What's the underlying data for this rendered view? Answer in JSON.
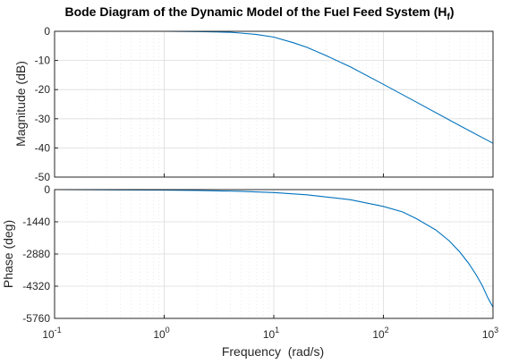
{
  "chart_data": [
    {
      "type": "line",
      "panel": "magnitude",
      "title": "Bode Diagram of the Dynamic Model of the Fuel Feed System (H",
      "title_subscript": "f",
      "title_suffix": ")",
      "ylabel": "Magnitude (dB)",
      "xlabel": "",
      "xscale": "log",
      "xlim": [
        0.1,
        1000
      ],
      "ylim": [
        -50,
        0
      ],
      "yticks": [
        "0",
        "-10",
        "-20",
        "-30",
        "-40",
        "-50"
      ],
      "grid": true,
      "color": "#0072BD",
      "series": [
        {
          "x": [
            0.1,
            0.5,
            1,
            2,
            3,
            4,
            5,
            7,
            10,
            15,
            20,
            30,
            50,
            100,
            200,
            500,
            1000
          ],
          "values": [
            0,
            0,
            0,
            -0.1,
            -0.2,
            -0.35,
            -0.6,
            -1.1,
            -2,
            -3.9,
            -5.5,
            -8.3,
            -12.2,
            -18.2,
            -24.3,
            -32.4,
            -38.4
          ]
        }
      ]
    },
    {
      "type": "line",
      "panel": "phase",
      "title": "",
      "ylabel": "Phase (deg)",
      "xlabel": "Frequency  (rad/s)",
      "xscale": "log",
      "xlim": [
        0.1,
        1000
      ],
      "xticks": [
        {
          "base": "10",
          "exp": "-1"
        },
        {
          "base": "10",
          "exp": "0"
        },
        {
          "base": "10",
          "exp": "1"
        },
        {
          "base": "10",
          "exp": "2"
        },
        {
          "base": "10",
          "exp": "3"
        }
      ],
      "ylim": [
        -5760,
        0
      ],
      "yticks": [
        "0",
        "-1440",
        "-2880",
        "-4320",
        "-5760"
      ],
      "grid": true,
      "color": "#0072BD",
      "series": [
        {
          "x": [
            0.1,
            1,
            2,
            5,
            10,
            20,
            50,
            100,
            150,
            200,
            300,
            400,
            500,
            600,
            700,
            800,
            900,
            1000
          ],
          "values": [
            0,
            -25,
            -40,
            -75,
            -130,
            -230,
            -450,
            -750,
            -1000,
            -1300,
            -1800,
            -2300,
            -2800,
            -3300,
            -3800,
            -4300,
            -4850,
            -5260
          ]
        }
      ]
    }
  ]
}
